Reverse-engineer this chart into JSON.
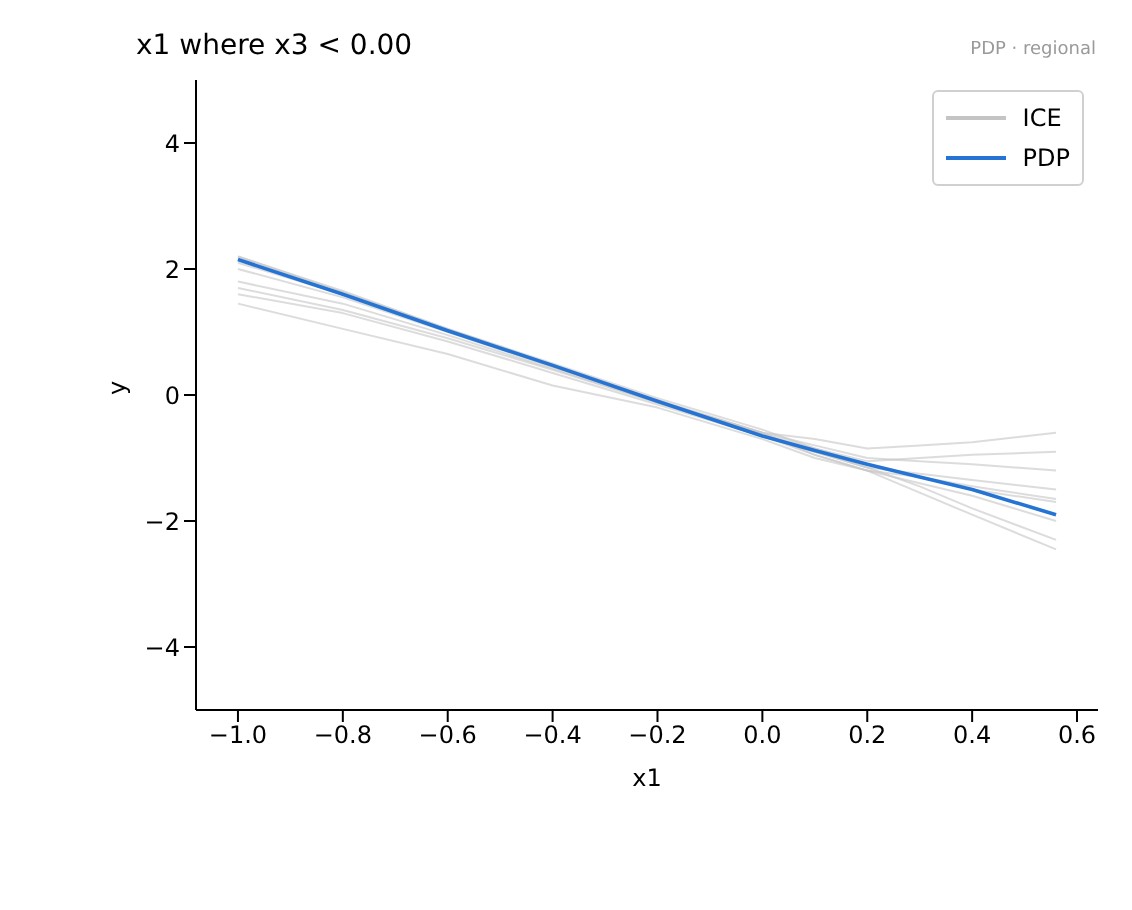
{
  "chart_data": {
    "type": "line",
    "title": "x1 where x3 < 0.00",
    "xlabel": "x1",
    "ylabel": "y",
    "annotations": [
      "PDP · regional"
    ],
    "x": [
      -1.0,
      -0.8,
      -0.6,
      -0.4,
      -0.2,
      0.0,
      0.1,
      0.2,
      0.3,
      0.4,
      0.56
    ],
    "series": [
      {
        "name": "ICE",
        "color": "#c4c4c4",
        "values": [
          2.2,
          1.65,
          1.05,
          0.5,
          -0.05,
          -0.55,
          -0.85,
          -1.1,
          -1.3,
          -1.5,
          -1.7
        ]
      },
      {
        "color": "#c4c4c4",
        "values": [
          2.2,
          1.63,
          1.05,
          0.48,
          -0.08,
          -0.6,
          -0.95,
          -1.2,
          -1.55,
          -1.9,
          -2.45
        ]
      },
      {
        "color": "#c4c4c4",
        "values": [
          2.15,
          1.6,
          1.02,
          0.45,
          -0.1,
          -0.65,
          -0.9,
          -1.15,
          -1.45,
          -1.8,
          -2.3
        ]
      },
      {
        "color": "#c4c4c4",
        "values": [
          2.1,
          1.6,
          1.03,
          0.47,
          -0.1,
          -0.6,
          -0.8,
          -1.0,
          -1.05,
          -1.1,
          -1.2
        ]
      },
      {
        "color": "#c4c4c4",
        "values": [
          2.0,
          1.55,
          1.0,
          0.45,
          -0.1,
          -0.6,
          -0.7,
          -0.85,
          -0.8,
          -0.75,
          -0.6
        ]
      },
      {
        "color": "#c4c4c4",
        "values": [
          1.8,
          1.45,
          0.95,
          0.42,
          -0.12,
          -0.62,
          -0.85,
          -1.05,
          -1.0,
          -0.95,
          -0.9
        ]
      },
      {
        "color": "#c4c4c4",
        "values": [
          1.6,
          1.3,
          0.85,
          0.35,
          -0.15,
          -0.65,
          -0.9,
          -1.15,
          -1.25,
          -1.35,
          -1.5
        ]
      },
      {
        "color": "#c4c4c4",
        "values": [
          1.45,
          1.05,
          0.65,
          0.15,
          -0.2,
          -0.7,
          -1.0,
          -1.2,
          -1.4,
          -1.6,
          -2.0
        ]
      },
      {
        "color": "#c4c4c4",
        "values": [
          1.7,
          1.35,
          0.9,
          0.4,
          -0.12,
          -0.65,
          -0.95,
          -1.2,
          -1.3,
          -1.45,
          -1.65
        ]
      },
      {
        "name": "PDP",
        "color": "#2574d4",
        "values": [
          2.15,
          1.6,
          1.02,
          0.47,
          -0.1,
          -0.65,
          -0.88,
          -1.1,
          -1.3,
          -1.5,
          -1.9
        ]
      }
    ],
    "xlim": [
      -1.08,
      0.64
    ],
    "xticks": [
      {
        "value": -1.0,
        "label": "−1.0"
      },
      {
        "value": -0.8,
        "label": "−0.8"
      },
      {
        "value": -0.6,
        "label": "−0.6"
      },
      {
        "value": -0.4,
        "label": "−0.4"
      },
      {
        "value": -0.2,
        "label": "−0.2"
      },
      {
        "value": 0.0,
        "label": "0.0"
      },
      {
        "value": 0.2,
        "label": "0.2"
      },
      {
        "value": 0.4,
        "label": "0.4"
      },
      {
        "value": 0.6,
        "label": "0.6"
      }
    ],
    "ylim": [
      -5,
      5
    ],
    "yticks": [
      {
        "value": -4,
        "label": "−4"
      },
      {
        "value": -2,
        "label": "−2"
      },
      0,
      2,
      4
    ],
    "grid": false,
    "legend": "top right",
    "marker": "none",
    "line_style": "solid"
  }
}
